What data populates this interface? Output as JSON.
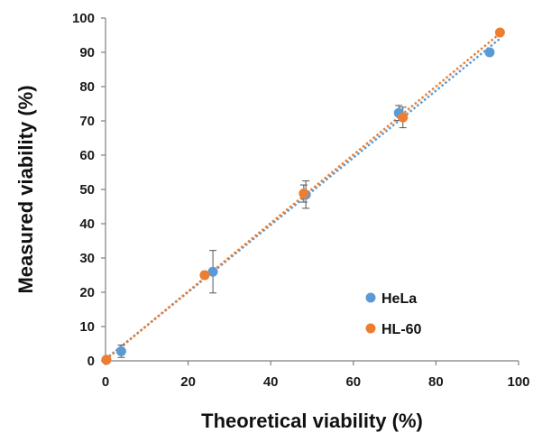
{
  "chart_data": {
    "type": "scatter",
    "xlabel": "Theoretical viability (%)",
    "ylabel": "Measured viability (%)",
    "xlim": [
      0,
      100
    ],
    "ylim": [
      0,
      100
    ],
    "xticks": [
      "0",
      "20",
      "40",
      "60",
      "80",
      "100"
    ],
    "yticks": [
      "0",
      "10",
      "20",
      "30",
      "40",
      "50",
      "60",
      "70",
      "80",
      "90",
      "100"
    ],
    "grid": false,
    "legend_position": "bottom-right",
    "series": [
      {
        "name": "HeLa",
        "color": "#5b9bd5",
        "points": [
          {
            "x": 0.2,
            "y": 0.3,
            "err": 0
          },
          {
            "x": 3.8,
            "y": 2.8,
            "err": 1.8
          },
          {
            "x": 26.0,
            "y": 26.0,
            "err": 6.2
          },
          {
            "x": 48.5,
            "y": 48.5,
            "err": 4.0
          },
          {
            "x": 71.0,
            "y": 72.3,
            "err": 2.2
          },
          {
            "x": 93.0,
            "y": 90.0,
            "err": 0
          }
        ],
        "trendline": {
          "from": [
            0,
            0.5
          ],
          "to": [
            95.5,
            94.0
          ]
        }
      },
      {
        "name": "HL-60",
        "color": "#ed7d31",
        "points": [
          {
            "x": 0.2,
            "y": 0.3,
            "err": 0
          },
          {
            "x": 24.0,
            "y": 25.0,
            "err": 1.0
          },
          {
            "x": 48.0,
            "y": 48.8,
            "err": 2.5
          },
          {
            "x": 72.0,
            "y": 71.0,
            "err": 3.0
          },
          {
            "x": 95.5,
            "y": 95.8,
            "err": 0.5
          }
        ],
        "trendline": {
          "from": [
            0,
            0.3
          ],
          "to": [
            95.5,
            95.5
          ]
        }
      }
    ]
  }
}
